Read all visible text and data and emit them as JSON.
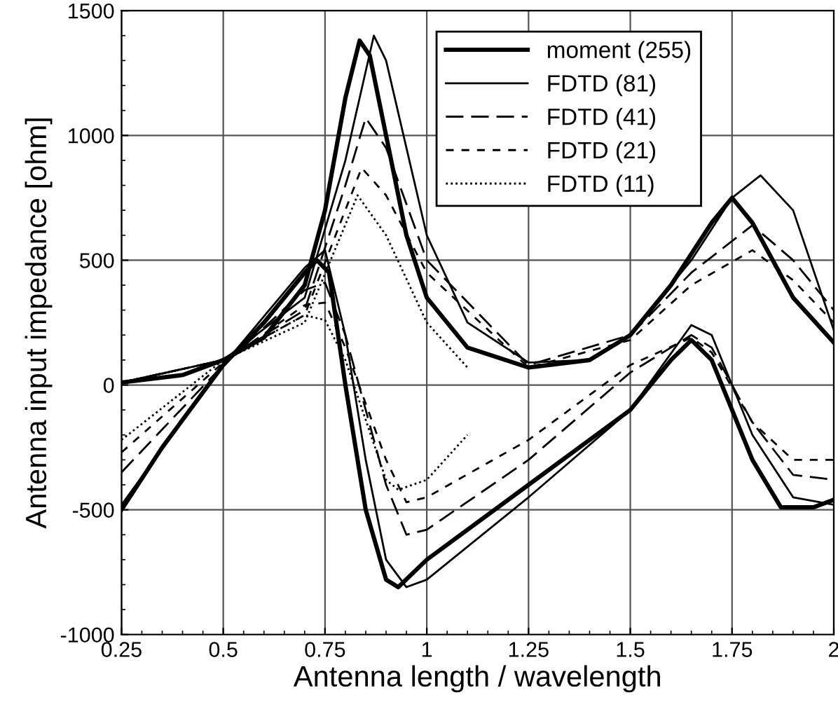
{
  "chart_data": {
    "type": "line",
    "xlabel": "Antenna length / wavelength",
    "ylabel": "Antenna input impedance [ohm]",
    "xlim": [
      0.25,
      2
    ],
    "ylim": [
      -1000,
      1500
    ],
    "xticks": [
      0.25,
      0.5,
      0.75,
      1,
      1.25,
      1.5,
      1.75,
      2
    ],
    "yticks": [
      -1000,
      -500,
      0,
      500,
      1000,
      1500
    ],
    "grid": true,
    "legend": "top right",
    "marker": "none",
    "series": [
      {
        "name": "moment (255)",
        "color": "#000000",
        "line_style": "solid",
        "x": [
          0.25,
          0.4,
          0.5,
          0.6,
          0.7,
          0.75,
          0.8,
          0.835,
          0.86,
          0.9,
          0.95,
          1.0,
          1.1,
          1.25,
          1.4,
          1.5,
          1.6,
          1.7,
          1.75,
          1.8,
          1.9,
          2.0
        ],
        "values": [
          10,
          40,
          100,
          190,
          400,
          700,
          1150,
          1380,
          1320,
          1000,
          600,
          350,
          150,
          70,
          100,
          200,
          400,
          650,
          750,
          650,
          350,
          170
        ]
      },
      {
        "name": "FDTD (81)",
        "color": "#000000",
        "line_style": "solid",
        "x": [
          0.25,
          0.5,
          0.7,
          0.8,
          0.87,
          0.9,
          1.0,
          1.1,
          1.25,
          1.4,
          1.5,
          1.65,
          1.75,
          1.82,
          1.9,
          2.0
        ],
        "values": [
          10,
          100,
          350,
          900,
          1400,
          1300,
          600,
          250,
          90,
          100,
          200,
          500,
          750,
          840,
          700,
          220
        ]
      },
      {
        "name": "FDTD (41)",
        "color": "#000000",
        "line_style": "dashed",
        "x": [
          0.25,
          0.5,
          0.7,
          0.8,
          0.85,
          0.9,
          1.0,
          1.25,
          1.5,
          1.65,
          1.8,
          1.9,
          2.0
        ],
        "values": [
          10,
          100,
          300,
          800,
          1070,
          950,
          500,
          80,
          200,
          450,
          640,
          500,
          300
        ]
      },
      {
        "name": "FDTD (21)",
        "color": "#000000",
        "line_style": "dashed",
        "x": [
          0.25,
          0.5,
          0.7,
          0.84,
          0.9,
          1.0,
          1.25,
          1.5,
          1.65,
          1.8,
          1.9,
          2.0
        ],
        "values": [
          10,
          100,
          280,
          870,
          760,
          450,
          70,
          180,
          400,
          540,
          420,
          250
        ]
      },
      {
        "name": "FDTD (11)",
        "color": "#000000",
        "line_style": "dotted",
        "x": [
          0.25,
          0.5,
          0.7,
          0.83,
          0.9,
          1.0,
          1.1
        ],
        "values": [
          10,
          100,
          250,
          760,
          600,
          250,
          70
        ]
      },
      {
        "color": "#000000",
        "line_style": "solid",
        "x": [
          0.25,
          0.35,
          0.5,
          0.6,
          0.7,
          0.73,
          0.76,
          0.8,
          0.85,
          0.9,
          0.93,
          1.0,
          1.25,
          1.5,
          1.6,
          1.65,
          1.7,
          1.8,
          1.87,
          1.95,
          2.0
        ],
        "values": [
          -500,
          -250,
          80,
          250,
          450,
          500,
          450,
          0,
          -500,
          -780,
          -810,
          -700,
          -400,
          -100,
          100,
          180,
          100,
          -300,
          -490,
          -490,
          -460
        ]
      },
      {
        "color": "#000000",
        "line_style": "solid",
        "x": [
          0.25,
          0.5,
          0.7,
          0.75,
          0.8,
          0.85,
          0.9,
          0.95,
          1.0,
          1.25,
          1.5,
          1.65,
          1.7,
          1.8,
          1.9,
          2.0
        ],
        "values": [
          -480,
          80,
          470,
          540,
          200,
          -300,
          -700,
          -810,
          -780,
          -450,
          -100,
          240,
          200,
          -200,
          -450,
          -480
        ]
      },
      {
        "color": "#000000",
        "line_style": "dashed",
        "x": [
          0.25,
          0.5,
          0.7,
          0.75,
          0.8,
          0.9,
          0.95,
          1.0,
          1.25,
          1.5,
          1.65,
          1.7,
          1.8,
          1.9,
          2.0
        ],
        "values": [
          -350,
          80,
          380,
          410,
          200,
          -400,
          -600,
          -580,
          -300,
          50,
          200,
          150,
          -150,
          -360,
          -380
        ]
      },
      {
        "color": "#000000",
        "line_style": "dashed",
        "x": [
          0.25,
          0.5,
          0.7,
          0.75,
          0.8,
          0.9,
          0.95,
          1.0,
          1.25,
          1.5,
          1.65,
          1.7,
          1.8,
          1.9,
          2.0
        ],
        "values": [
          -270,
          90,
          320,
          330,
          150,
          -300,
          -470,
          -450,
          -220,
          80,
          190,
          130,
          -150,
          -300,
          -300
        ]
      },
      {
        "color": "#000000",
        "line_style": "dotted",
        "x": [
          0.25,
          0.5,
          0.7,
          0.75,
          0.8,
          0.9,
          0.93,
          1.0,
          1.1
        ],
        "values": [
          -220,
          100,
          280,
          260,
          100,
          -380,
          -420,
          -380,
          -200
        ]
      }
    ]
  }
}
